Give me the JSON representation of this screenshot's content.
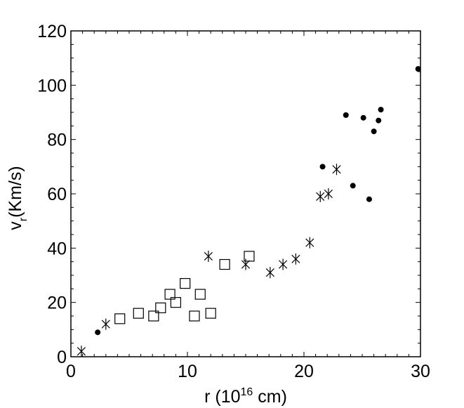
{
  "chart_data": {
    "type": "scatter",
    "xlabel": {
      "base": "r (10",
      "sup": "16",
      "tail": " cm)"
    },
    "ylabel": {
      "base": "v",
      "sub": "r",
      "tail": "(Km/s)"
    },
    "xlim": [
      0,
      30
    ],
    "ylim": [
      0,
      120
    ],
    "xticks": [
      0,
      10,
      20,
      30
    ],
    "yticks": [
      0,
      20,
      40,
      60,
      80,
      100,
      120
    ],
    "xtick_labels": [
      "0",
      "10",
      "20",
      "30"
    ],
    "ytick_labels": [
      "0",
      "20",
      "40",
      "60",
      "80",
      "100",
      "120"
    ],
    "grid": false,
    "legend": "none",
    "series": [
      {
        "marker": "dot",
        "color": "#000000",
        "points": [
          {
            "x": 2.3,
            "y": 9
          },
          {
            "x": 21.6,
            "y": 70
          },
          {
            "x": 23.6,
            "y": 89
          },
          {
            "x": 24.2,
            "y": 63
          },
          {
            "x": 25.1,
            "y": 88
          },
          {
            "x": 25.6,
            "y": 58
          },
          {
            "x": 26.0,
            "y": 83
          },
          {
            "x": 26.4,
            "y": 87
          },
          {
            "x": 26.6,
            "y": 91
          },
          {
            "x": 29.8,
            "y": 106
          }
        ]
      },
      {
        "marker": "square",
        "color": "#000000",
        "points": [
          {
            "x": 4.2,
            "y": 14
          },
          {
            "x": 5.8,
            "y": 16
          },
          {
            "x": 7.1,
            "y": 15
          },
          {
            "x": 7.7,
            "y": 18
          },
          {
            "x": 8.5,
            "y": 23
          },
          {
            "x": 9.0,
            "y": 20
          },
          {
            "x": 9.8,
            "y": 27
          },
          {
            "x": 10.6,
            "y": 15
          },
          {
            "x": 11.1,
            "y": 23
          },
          {
            "x": 12.0,
            "y": 16
          },
          {
            "x": 13.2,
            "y": 34
          },
          {
            "x": 15.3,
            "y": 37
          }
        ]
      },
      {
        "marker": "asterisk",
        "color": "#000000",
        "points": [
          {
            "x": 0.9,
            "y": 2
          },
          {
            "x": 3.0,
            "y": 12
          },
          {
            "x": 11.8,
            "y": 37
          },
          {
            "x": 15.0,
            "y": 34
          },
          {
            "x": 17.1,
            "y": 31
          },
          {
            "x": 18.2,
            "y": 34
          },
          {
            "x": 19.3,
            "y": 36
          },
          {
            "x": 20.5,
            "y": 42
          },
          {
            "x": 21.4,
            "y": 59
          },
          {
            "x": 22.1,
            "y": 60
          },
          {
            "x": 22.8,
            "y": 69
          }
        ]
      }
    ]
  }
}
